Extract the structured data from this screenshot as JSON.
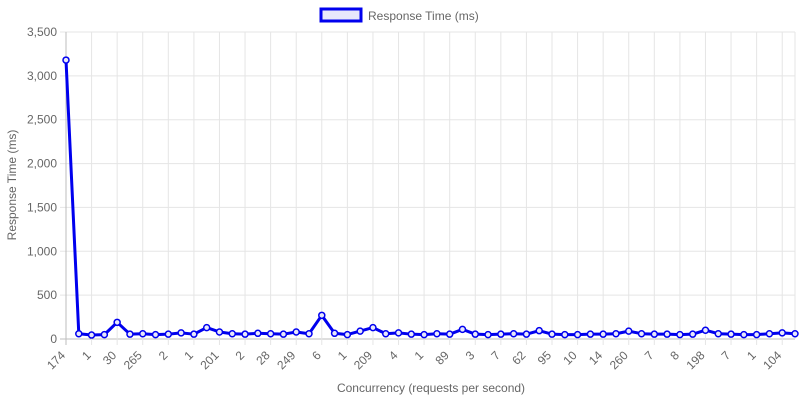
{
  "chart_data": {
    "type": "line",
    "title": "",
    "xlabel": "Concurrency (requests per second)",
    "ylabel": "Response Time (ms)",
    "ylim": [
      0,
      3500
    ],
    "yticks": [
      0,
      500,
      1000,
      1500,
      2000,
      2500,
      3000,
      3500
    ],
    "ytick_labels": [
      "0",
      "500",
      "1,000",
      "1,500",
      "2,000",
      "2,500",
      "3,000",
      "3,500"
    ],
    "grid": true,
    "legend_position": "top",
    "categories": [
      "174",
      "",
      "1",
      "",
      "30",
      "",
      "265",
      "",
      "2",
      "",
      "1",
      "",
      "201",
      "",
      "2",
      "",
      "28",
      "",
      "249",
      "",
      "6",
      "",
      "1",
      "",
      "209",
      "",
      "4",
      "",
      "1",
      "",
      "89",
      "",
      "3",
      "",
      "7",
      "",
      "62",
      "",
      "95",
      "",
      "10",
      "",
      "14",
      "",
      "260",
      "",
      "7",
      "",
      "8",
      "",
      "198",
      "",
      "7",
      "",
      "1",
      "",
      "104",
      ""
    ],
    "series": [
      {
        "name": "Response Time (ms)",
        "color": "#0000ee",
        "values": [
          3180,
          60,
          45,
          50,
          190,
          55,
          60,
          50,
          55,
          70,
          55,
          130,
          80,
          60,
          55,
          65,
          60,
          55,
          80,
          60,
          270,
          65,
          50,
          90,
          130,
          60,
          70,
          55,
          50,
          60,
          55,
          110,
          55,
          50,
          55,
          60,
          55,
          95,
          55,
          50,
          50,
          55,
          55,
          60,
          90,
          60,
          55,
          55,
          50,
          55,
          100,
          60,
          55,
          50,
          50,
          60,
          70,
          60
        ]
      }
    ]
  }
}
